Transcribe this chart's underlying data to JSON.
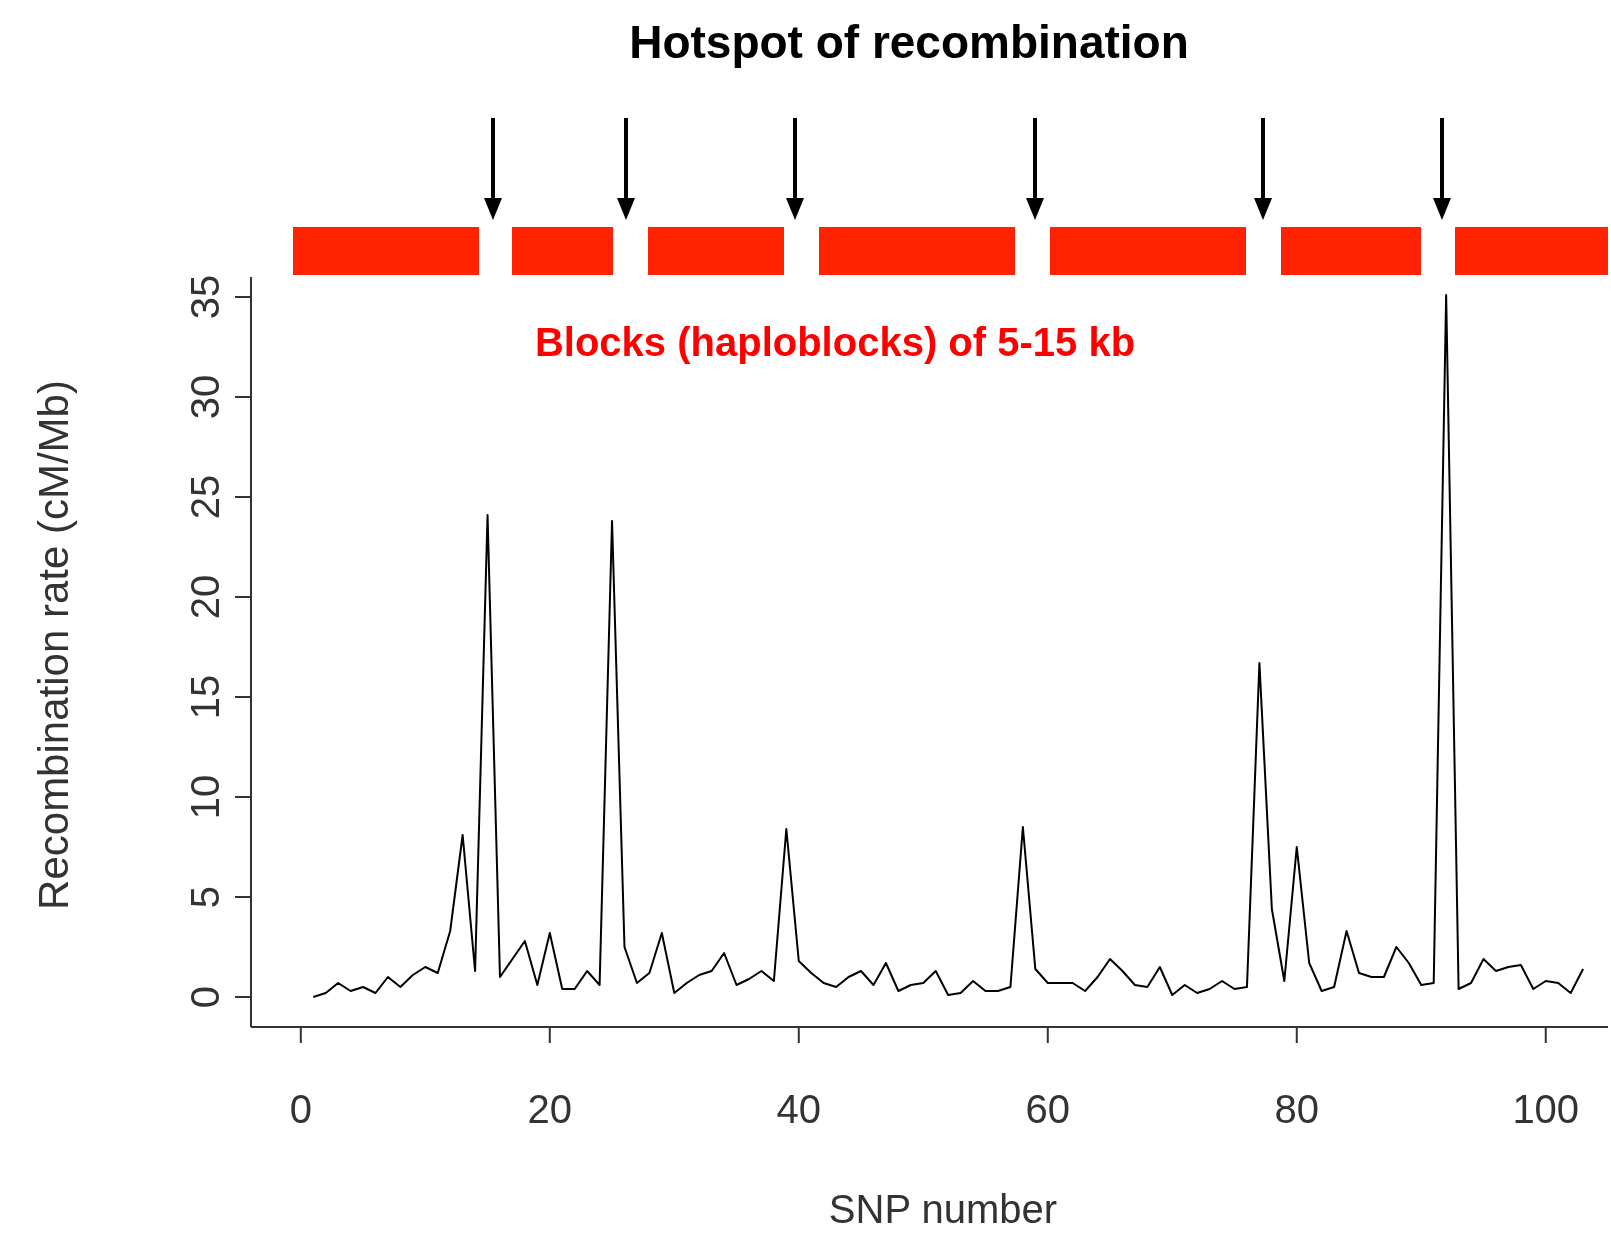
{
  "chart_data": {
    "type": "line",
    "title": "Hotspot of recombination",
    "xlabel": "SNP number",
    "ylabel": "Recombination rate (cM/Mb)",
    "annotations": [
      "Blocks (haploblocks) of 5-15 kb"
    ],
    "x": [
      1,
      2,
      3,
      4,
      5,
      6,
      7,
      8,
      9,
      10,
      11,
      12,
      13,
      14,
      15,
      16,
      17,
      18,
      19,
      20,
      21,
      22,
      23,
      24,
      25,
      26,
      27,
      28,
      29,
      30,
      31,
      32,
      33,
      34,
      35,
      36,
      37,
      38,
      39,
      40,
      41,
      42,
      43,
      44,
      45,
      46,
      47,
      48,
      49,
      50,
      51,
      52,
      53,
      54,
      55,
      56,
      57,
      58,
      59,
      60,
      61,
      62,
      63,
      64,
      65,
      66,
      67,
      68,
      69,
      70,
      71,
      72,
      73,
      74,
      75,
      76,
      77,
      78,
      79,
      80,
      81,
      82,
      83,
      84,
      85,
      86,
      87,
      88,
      89,
      90,
      91,
      92,
      93,
      94,
      95,
      96,
      97,
      98,
      99,
      100,
      101,
      102,
      103
    ],
    "values": [
      0,
      0.2,
      0.7,
      0.3,
      0.5,
      0.2,
      1.0,
      0.5,
      1.1,
      1.5,
      1.2,
      3.3,
      8.1,
      1.3,
      24.1,
      1.0,
      1.9,
      2.8,
      0.6,
      3.2,
      0.4,
      0.4,
      1.3,
      0.6,
      23.8,
      2.5,
      0.7,
      1.2,
      3.2,
      0.2,
      0.7,
      1.1,
      1.3,
      2.2,
      0.6,
      0.9,
      1.3,
      0.8,
      8.4,
      1.8,
      1.2,
      0.7,
      0.5,
      1.0,
      1.3,
      0.6,
      1.7,
      0.3,
      0.6,
      0.7,
      1.3,
      0.1,
      0.2,
      0.8,
      0.3,
      0.3,
      0.5,
      8.5,
      1.4,
      0.7,
      0.7,
      0.7,
      0.3,
      1.0,
      1.9,
      1.3,
      0.6,
      0.5,
      1.5,
      0.1,
      0.6,
      0.2,
      0.4,
      0.8,
      0.4,
      0.5,
      16.7,
      4.4,
      0.8,
      7.5,
      1.7,
      0.3,
      0.5,
      3.3,
      1.2,
      1.0,
      1.0,
      2.5,
      1.7,
      0.6,
      0.7,
      35.1,
      0.4,
      0.7,
      1.9,
      1.3,
      1.5,
      1.6,
      0.4,
      0.8,
      0.7,
      0.2,
      1.4
    ],
    "color": "#000000",
    "xlim": [
      -4,
      105
    ],
    "xticks": [
      0,
      20,
      40,
      60,
      80,
      100
    ],
    "ylim": [
      -1.5,
      36
    ],
    "yticks": [
      0,
      5,
      10,
      15,
      20,
      25,
      30,
      35
    ]
  }
}
